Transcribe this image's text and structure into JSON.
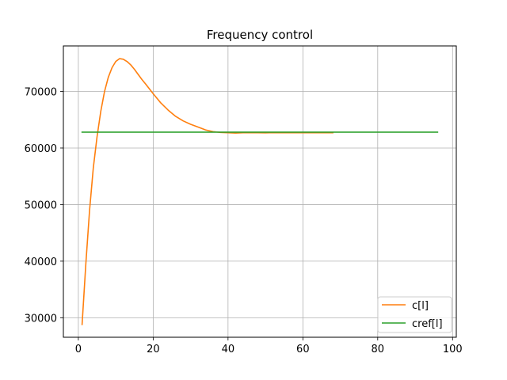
{
  "chart_data": {
    "type": "line",
    "title": "Frequency control",
    "xlabel": "",
    "ylabel": "",
    "xlim": [
      -4,
      101
    ],
    "ylim": [
      26550,
      78050
    ],
    "xticks": [
      0,
      20,
      40,
      60,
      80,
      100
    ],
    "yticks": [
      30000,
      40000,
      50000,
      60000,
      70000
    ],
    "grid": true,
    "legend_position": "lower-right",
    "series": [
      {
        "name": "c[l]",
        "color": "#ff7f0e",
        "x": [
          1,
          2,
          3,
          4,
          5,
          6,
          7,
          8,
          9,
          10,
          11,
          12,
          13,
          14,
          15,
          16,
          17,
          18,
          20,
          22,
          24,
          26,
          28,
          30,
          32,
          34,
          36,
          38,
          40,
          42,
          44,
          46,
          48,
          50,
          52,
          54,
          56,
          58,
          60,
          62,
          64,
          66,
          68
        ],
        "y": [
          28800,
          39500,
          49000,
          56500,
          62000,
          66500,
          70000,
          72500,
          74200,
          75300,
          75800,
          75700,
          75300,
          74700,
          73900,
          73000,
          72100,
          71300,
          69600,
          68000,
          66700,
          65600,
          64800,
          64200,
          63700,
          63200,
          62900,
          62750,
          62700,
          62650,
          62700,
          62720,
          62700,
          62680,
          62710,
          62700,
          62690,
          62710,
          62700,
          62690,
          62700,
          62700,
          62700
        ]
      },
      {
        "name": "cref[l]",
        "color": "#2ca02c",
        "x": [
          1,
          96
        ],
        "y": [
          62800,
          62800
        ]
      }
    ]
  }
}
